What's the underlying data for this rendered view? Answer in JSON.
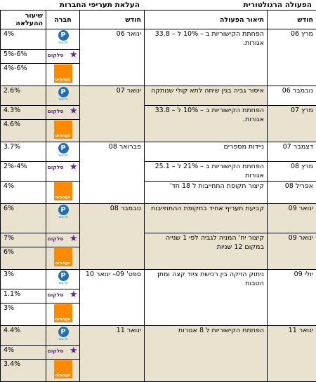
{
  "headers": {
    "regulatory_group": "הפעולה הרגולטורית",
    "rates_group": "העלאת תעריפי החברות",
    "col_rate": "שיעור ההעלאה",
    "col_company": "חברה",
    "col_month_rates": "חודש",
    "col_action_desc": "תיאור הפעולה",
    "col_month_reg": "חודש"
  },
  "logos": {
    "partner": {
      "letter": "P",
      "caption": "פרטנר"
    },
    "cellcom": {
      "caption": "סלקום"
    },
    "orange": {
      "caption": "orange"
    }
  },
  "rows": [
    {
      "rate_month": "ינואר 06",
      "rates": [
        "4%",
        "5%-6%",
        "4%-6%"
      ],
      "actions": [
        {
          "month": "מרץ 06",
          "text": "הפחתת הקישוריות ב – 10% ל – 33.8 אגורות."
        }
      ]
    },
    {
      "rate_month": "ינואר 07",
      "rates": [
        "2.6%",
        "4.3%",
        "4.6%"
      ],
      "actions": [
        {
          "month": "נובמבר 06",
          "text": "איסור גביה בגין שיחה לתא קולי שנותקה"
        },
        {
          "month": "מרץ 07",
          "text": "הפחתת הקישוריות ב – 10% ל – 33.8 אגורות."
        }
      ]
    },
    {
      "rate_month": "פברואר 08",
      "rates": [
        "3.7%",
        "2%-4%",
        "4%"
      ],
      "actions": [
        {
          "month": "דצמבר 07",
          "text": "ניידות מספרים"
        },
        {
          "month": "מרץ 08",
          "text": "הפחתת הקישוריות ב – 21% ל – 25.1 אגורות"
        },
        {
          "month": "אפריל 08",
          "text": "קיצור תקופת התחייבות ל 18 חד'"
        }
      ]
    },
    {
      "rate_month": "נובמבר 08",
      "rates": [
        "6%",
        "7%",
        "6%"
      ],
      "actions": [
        {
          "month": "ינואר 09",
          "text": "קביעת תעריף אחיד בתקופת ההתחייבות"
        },
        {
          "month": "ינואר 09",
          "text": "קיצור יח' המניה לגביה לפי 1 שנייה במקום 12 שניות"
        }
      ]
    },
    {
      "rate_month": "ספט' 09– ינואר 10",
      "rates": [
        "3%",
        "1.1%",
        "3%"
      ],
      "actions": [
        {
          "month": "יולי 09",
          "text": "ניתוק הזיקה בין רכישת ציוד קצה ומתן הטבות"
        }
      ]
    },
    {
      "rate_month": "ינואר 11",
      "rates": [
        "4.4%",
        "4%",
        "3.4%"
      ],
      "actions": [
        {
          "month": "ינואר 11",
          "text": "הפחתת הקישוריות ל 8 אגורות"
        }
      ]
    }
  ]
}
